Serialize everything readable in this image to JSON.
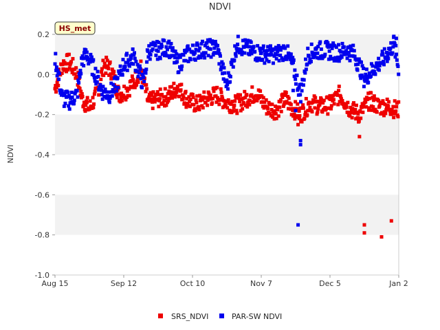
{
  "chart_data": {
    "type": "scatter",
    "title": "NDVI",
    "xlabel": "",
    "ylabel": "NDVI",
    "tag": "HS_met",
    "ylim": [
      -1.0,
      0.2
    ],
    "yticks": [
      0.2,
      0.0,
      -0.2,
      -0.4,
      -0.6,
      -0.8,
      -1.0
    ],
    "ytick_labels": [
      "0.2",
      "0.0",
      "-0.2",
      "-0.4",
      "-0.6",
      "-0.8",
      "-1.0"
    ],
    "xlim_days": [
      0,
      140
    ],
    "xticks": [
      {
        "day": 0,
        "label": "Aug 15"
      },
      {
        "day": 28,
        "label": "Sep 12"
      },
      {
        "day": 56,
        "label": "Oct 10"
      },
      {
        "day": 84,
        "label": "Nov 7"
      },
      {
        "day": 112,
        "label": "Dec 5"
      },
      {
        "day": 140,
        "label": "Jan 2"
      }
    ],
    "grid": "alternating horizontal bands",
    "legend_position": "bottom-center",
    "colors": {
      "SRS_NDVI": "#ee0000",
      "PAR-SW NDVI": "#0000ee",
      "band": "#f2f2f2",
      "tag_bg": "#ffffcc"
    },
    "series": [
      {
        "name": "SRS_NDVI",
        "color": "#ee0000",
        "trend": [
          [
            0,
            -0.07
          ],
          [
            3,
            0.05
          ],
          [
            6,
            0.06
          ],
          [
            9,
            0.0
          ],
          [
            11,
            -0.12
          ],
          [
            14,
            -0.17
          ],
          [
            17,
            -0.1
          ],
          [
            20,
            0.05
          ],
          [
            23,
            0.02
          ],
          [
            26,
            -0.1
          ],
          [
            29,
            -0.08
          ],
          [
            32,
            -0.04
          ],
          [
            35,
            0.03
          ],
          [
            38,
            -0.14
          ],
          [
            42,
            -0.12
          ],
          [
            46,
            -0.11
          ],
          [
            50,
            -0.06
          ],
          [
            54,
            -0.13
          ],
          [
            58,
            -0.15
          ],
          [
            62,
            -0.12
          ],
          [
            66,
            -0.1
          ],
          [
            70,
            -0.14
          ],
          [
            74,
            -0.15
          ],
          [
            78,
            -0.12
          ],
          [
            82,
            -0.09
          ],
          [
            86,
            -0.16
          ],
          [
            90,
            -0.18
          ],
          [
            94,
            -0.12
          ],
          [
            96,
            -0.16
          ],
          [
            100,
            -0.2
          ],
          [
            104,
            -0.14
          ],
          [
            108,
            -0.16
          ],
          [
            112,
            -0.15
          ],
          [
            116,
            -0.1
          ],
          [
            120,
            -0.17
          ],
          [
            124,
            -0.2
          ],
          [
            128,
            -0.13
          ],
          [
            132,
            -0.16
          ],
          [
            136,
            -0.16
          ],
          [
            140,
            -0.18
          ]
        ],
        "outliers": [
          [
            99,
            -0.25
          ],
          [
            99.5,
            -0.22
          ],
          [
            124,
            -0.31
          ],
          [
            126,
            -0.75
          ],
          [
            126,
            -0.79
          ],
          [
            133,
            -0.81
          ],
          [
            137,
            -0.73
          ]
        ]
      },
      {
        "name": "PAR-SW NDVI",
        "color": "#0000ee",
        "trend": [
          [
            0,
            0.09
          ],
          [
            3,
            -0.12
          ],
          [
            6,
            -0.13
          ],
          [
            9,
            -0.1
          ],
          [
            11,
            0.07
          ],
          [
            13,
            0.1
          ],
          [
            16,
            0.02
          ],
          [
            19,
            -0.08
          ],
          [
            22,
            -0.1
          ],
          [
            25,
            -0.05
          ],
          [
            28,
            0.05
          ],
          [
            32,
            0.09
          ],
          [
            36,
            -0.05
          ],
          [
            38,
            0.12
          ],
          [
            42,
            0.12
          ],
          [
            46,
            0.14
          ],
          [
            50,
            0.05
          ],
          [
            54,
            0.1
          ],
          [
            58,
            0.12
          ],
          [
            62,
            0.13
          ],
          [
            66,
            0.13
          ],
          [
            70,
            -0.06
          ],
          [
            74,
            0.15
          ],
          [
            78,
            0.13
          ],
          [
            82,
            0.11
          ],
          [
            86,
            0.1
          ],
          [
            90,
            0.1
          ],
          [
            94,
            0.12
          ],
          [
            97,
            0.04
          ],
          [
            100,
            -0.1
          ],
          [
            103,
            0.1
          ],
          [
            107,
            0.12
          ],
          [
            111,
            0.12
          ],
          [
            115,
            0.11
          ],
          [
            119,
            0.12
          ],
          [
            122,
            0.1
          ],
          [
            126,
            -0.02
          ],
          [
            130,
            0.03
          ],
          [
            134,
            0.08
          ],
          [
            138,
            0.15
          ],
          [
            140,
            0.03
          ]
        ],
        "outliers": [
          [
            97,
            -0.08
          ],
          [
            98,
            -0.18
          ],
          [
            100,
            -0.35
          ],
          [
            100,
            -0.33
          ],
          [
            99,
            -0.75
          ],
          [
            138,
            0.19
          ],
          [
            139,
            0.18
          ]
        ]
      }
    ]
  }
}
